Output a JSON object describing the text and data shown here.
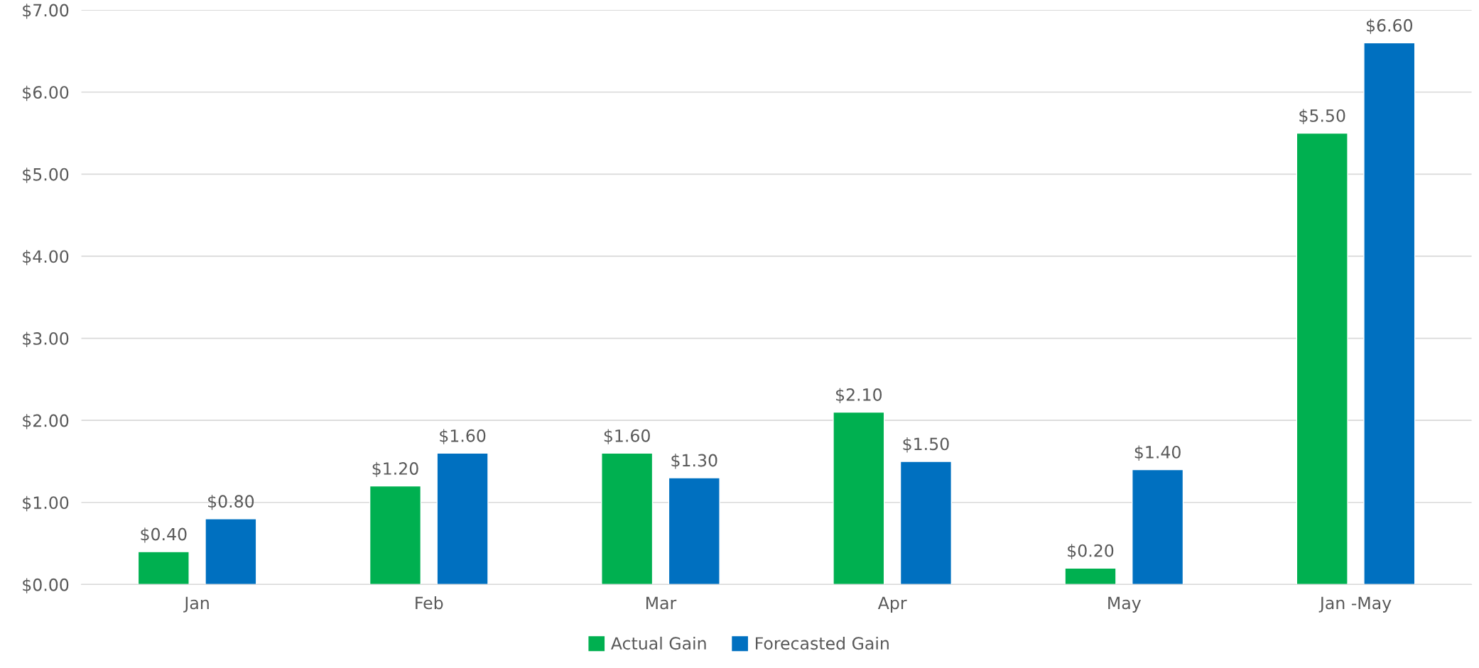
{
  "chart_data": {
    "type": "bar",
    "categories": [
      "Jan",
      "Feb",
      "Mar",
      "Apr",
      "May",
      "Jan -May"
    ],
    "series": [
      {
        "name": "Actual Gain",
        "color": "#00b050",
        "values": [
          0.4,
          1.2,
          1.6,
          2.1,
          0.2,
          5.5
        ],
        "value_labels": [
          "$0.40",
          "$1.20",
          "$1.60",
          "$2.10",
          "$0.20",
          "$5.50"
        ]
      },
      {
        "name": "Forecasted Gain",
        "color": "#0070c0",
        "values": [
          0.8,
          1.6,
          1.3,
          1.5,
          1.4,
          6.6
        ],
        "value_labels": [
          "$0.80",
          "$1.60",
          "$1.30",
          "$1.50",
          "$1.40",
          "$6.60"
        ]
      }
    ],
    "ylim": [
      0,
      7
    ],
    "yticks": [
      {
        "value": 0,
        "label": "$0.00"
      },
      {
        "value": 1,
        "label": "$1.00"
      },
      {
        "value": 2,
        "label": "$2.00"
      },
      {
        "value": 3,
        "label": "$3.00"
      },
      {
        "value": 4,
        "label": "$4.00"
      },
      {
        "value": 5,
        "label": "$5.00"
      },
      {
        "value": 6,
        "label": "$6.00"
      },
      {
        "value": 7,
        "label": "$7.00"
      }
    ],
    "grid": "y",
    "legend": "bottom"
  }
}
